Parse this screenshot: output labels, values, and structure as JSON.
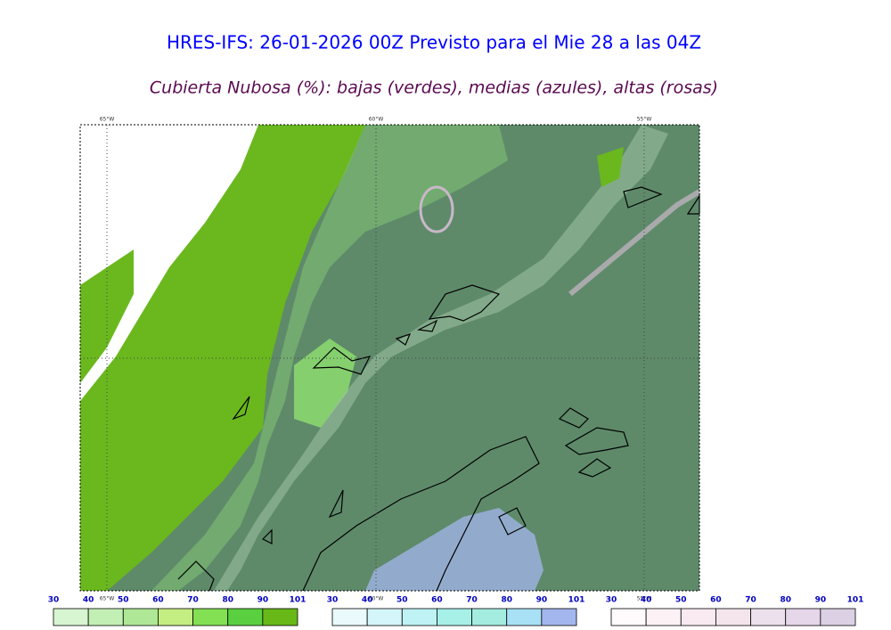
{
  "header": {
    "title": "HRES-IFS: 26-01-2026 00Z Previsto para el Mie 28 a las 04Z",
    "subtitle": "Cubierta Nubosa (%): bajas (verdes), medias (azules), altas (rosas)"
  },
  "map": {
    "longitude_labels": [
      "65°W",
      "60°W",
      "55°W"
    ]
  },
  "colorbars": [
    {
      "labels": [
        30,
        40,
        50,
        60,
        70,
        80,
        90,
        101
      ],
      "colors": [
        "#d6f5d0",
        "#c2f0b4",
        "#aee896",
        "#c4ee82",
        "#82e052",
        "#5ad040",
        "#68b818"
      ]
    },
    {
      "labels": [
        30,
        40,
        50,
        60,
        70,
        80,
        90,
        101
      ],
      "colors": [
        "#eafafc",
        "#d4f6fa",
        "#bef2f4",
        "#a6f0e8",
        "#a4ece0",
        "#a8e0f6",
        "#a4b6ee"
      ]
    },
    {
      "labels": [
        30,
        40,
        50,
        60,
        70,
        80,
        90,
        101
      ],
      "colors": [
        "#fffafc",
        "#fcf2f6",
        "#f8eaf0",
        "#f4e4ec",
        "#ece0ec",
        "#e6d6ea",
        "#dcd0e4"
      ]
    }
  ]
}
